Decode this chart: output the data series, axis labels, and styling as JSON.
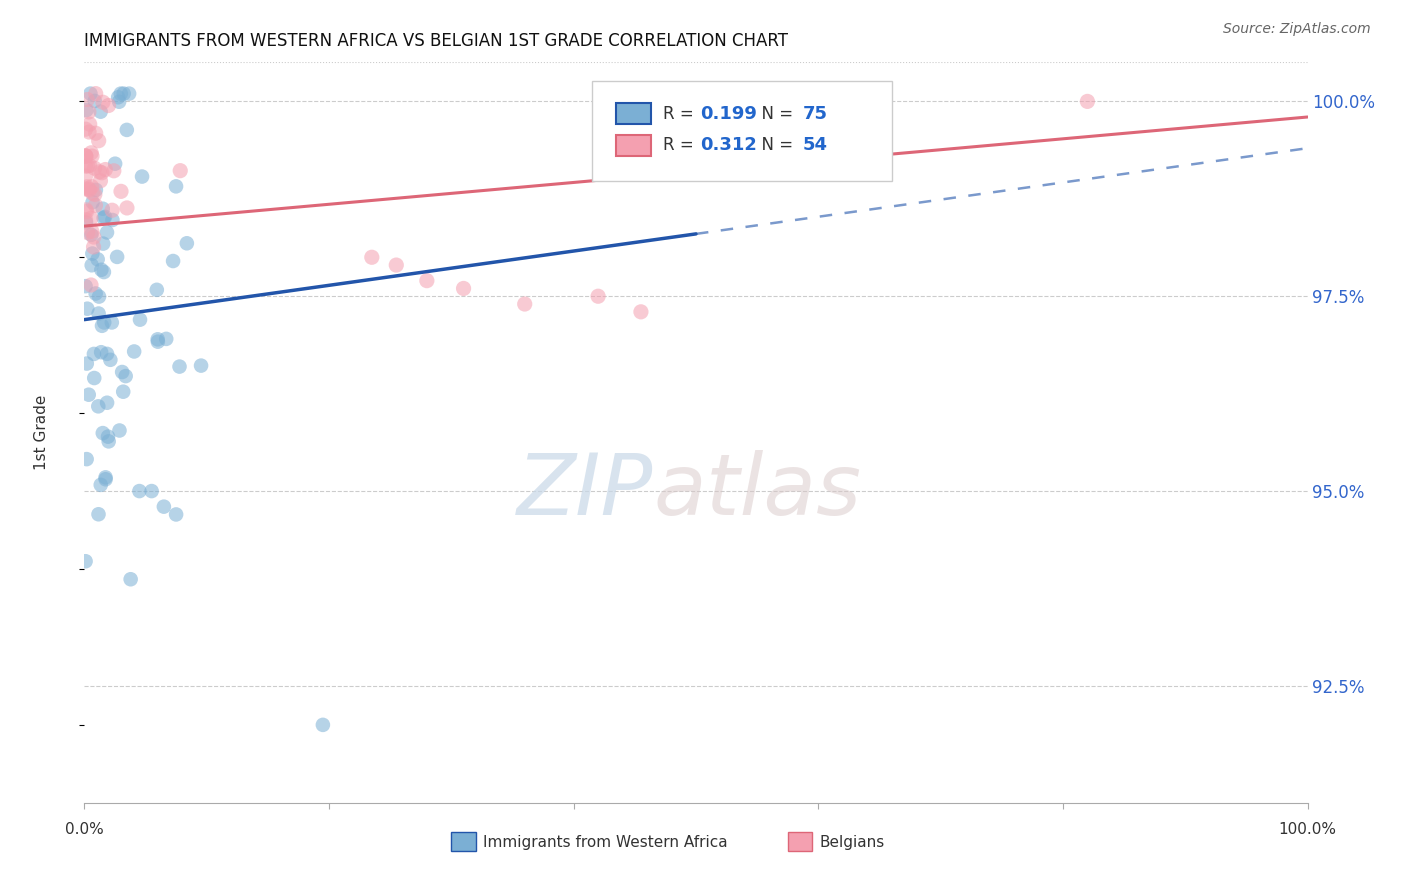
{
  "title": "IMMIGRANTS FROM WESTERN AFRICA VS BELGIAN 1ST GRADE CORRELATION CHART",
  "source": "Source: ZipAtlas.com",
  "ylabel": "1st Grade",
  "ylabel_right_ticks": [
    "100.0%",
    "97.5%",
    "95.0%",
    "92.5%"
  ],
  "ylabel_right_vals": [
    1.0,
    0.975,
    0.95,
    0.925
  ],
  "x_min": 0.0,
  "x_max": 1.0,
  "y_min": 0.91,
  "y_max": 1.005,
  "blue_R": 0.199,
  "blue_N": 75,
  "pink_R": 0.312,
  "pink_N": 54,
  "blue_color": "#7BAFD4",
  "pink_color": "#F4A0B0",
  "blue_line_color": "#2255AA",
  "pink_line_color": "#DD6677",
  "grid_color": "#CCCCCC",
  "watermark_zip": "ZIP",
  "watermark_atlas": "atlas",
  "blue_line_x0": 0.0,
  "blue_line_y0": 0.972,
  "blue_line_x1": 0.5,
  "blue_line_y1": 0.983,
  "blue_line_x2": 1.0,
  "blue_line_y2": 0.994,
  "pink_line_x0": 0.0,
  "pink_line_y0": 0.984,
  "pink_line_x1": 1.0,
  "pink_line_y1": 0.998
}
